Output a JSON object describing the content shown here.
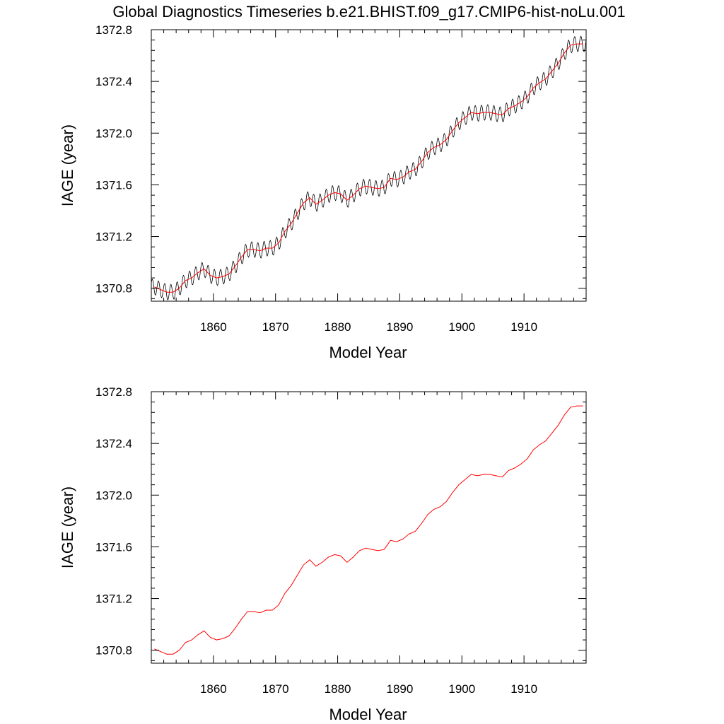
{
  "title": "Global Diagnostics Timeseries b.e21.BHIST.f09_g17.CMIP6-hist-noLu.001",
  "colors": {
    "monthly": "#000000",
    "annual": "#ff0000",
    "axes": "#000000"
  },
  "chart_data": [
    {
      "type": "line",
      "title": "Global Diagnostics Timeseries b.e21.BHIST.f09_g17.CMIP6-hist-noLu.001",
      "xlabel": "Model Year",
      "ylabel": "IAGE (year)",
      "xlim": [
        1850,
        1920
      ],
      "ylim": [
        1370.7,
        1372.8
      ],
      "x_ticks": [
        1860,
        1870,
        1880,
        1890,
        1900,
        1910
      ],
      "y_ticks": [
        1370.8,
        1371.2,
        1371.6,
        1372.0,
        1372.4,
        1372.8
      ],
      "x_tick_labels": [
        "1860",
        "1870",
        "1880",
        "1890",
        "1900",
        "1910"
      ],
      "y_tick_labels": [
        "1370.8",
        "1371.2",
        "1371.6",
        "1372.0",
        "1372.4",
        "1372.8"
      ],
      "grid": false,
      "series": [
        {
          "color": "#000000",
          "kind": "monthly",
          "seasonal_amplitude": 0.06,
          "x": [
            1850,
            1920
          ]
        },
        {
          "color": "#ff0000",
          "kind": "annual",
          "x": [
            1850.5,
            1851.5,
            1852.5,
            1853.5,
            1854.5,
            1855.5,
            1856.5,
            1857.5,
            1858.5,
            1859.5,
            1860.5,
            1861.5,
            1862.5,
            1863.5,
            1864.5,
            1865.5,
            1866.5,
            1867.5,
            1868.5,
            1869.5,
            1870.5,
            1871.5,
            1872.5,
            1873.5,
            1874.5,
            1875.5,
            1876.5,
            1877.5,
            1878.5,
            1879.5,
            1880.5,
            1881.5,
            1882.5,
            1883.5,
            1884.5,
            1885.5,
            1886.5,
            1887.5,
            1888.5,
            1889.5,
            1890.5,
            1891.5,
            1892.5,
            1893.5,
            1894.5,
            1895.5,
            1896.5,
            1897.5,
            1898.5,
            1899.5,
            1900.5,
            1901.5,
            1902.5,
            1903.5,
            1904.5,
            1905.5,
            1906.5,
            1907.5,
            1908.5,
            1909.5,
            1910.5,
            1911.5,
            1912.5,
            1913.5,
            1914.5,
            1915.5,
            1916.5,
            1917.5,
            1918.5,
            1919.5
          ],
          "values": [
            1370.81,
            1370.79,
            1370.77,
            1370.77,
            1370.8,
            1370.86,
            1370.88,
            1370.92,
            1370.95,
            1370.9,
            1370.88,
            1370.89,
            1370.91,
            1370.97,
            1371.04,
            1371.1,
            1371.1,
            1371.09,
            1371.11,
            1371.11,
            1371.15,
            1371.24,
            1371.3,
            1371.38,
            1371.46,
            1371.5,
            1371.45,
            1371.48,
            1371.52,
            1371.54,
            1371.53,
            1371.48,
            1371.52,
            1371.57,
            1371.59,
            1371.58,
            1371.57,
            1371.58,
            1371.65,
            1371.64,
            1371.66,
            1371.7,
            1371.72,
            1371.78,
            1371.85,
            1371.89,
            1371.91,
            1371.95,
            1372.02,
            1372.08,
            1372.12,
            1372.16,
            1372.15,
            1372.16,
            1372.16,
            1372.15,
            1372.14,
            1372.19,
            1372.21,
            1372.24,
            1372.28,
            1372.35,
            1372.39,
            1372.42,
            1372.48,
            1372.54,
            1372.62,
            1372.68,
            1372.69,
            1372.69
          ]
        }
      ]
    },
    {
      "type": "line",
      "xlabel": "Model Year",
      "ylabel": "IAGE (year)",
      "xlim": [
        1850,
        1920
      ],
      "ylim": [
        1370.7,
        1372.8
      ],
      "x_ticks": [
        1860,
        1870,
        1880,
        1890,
        1900,
        1910
      ],
      "y_ticks": [
        1370.8,
        1371.2,
        1371.6,
        1372.0,
        1372.4,
        1372.8
      ],
      "x_tick_labels": [
        "1860",
        "1870",
        "1880",
        "1890",
        "1900",
        "1910"
      ],
      "y_tick_labels": [
        "1370.8",
        "1371.2",
        "1371.6",
        "1372.0",
        "1372.4",
        "1372.8"
      ],
      "grid": false,
      "series": [
        {
          "color": "#ff0000",
          "kind": "annual",
          "x": [
            1850.5,
            1851.5,
            1852.5,
            1853.5,
            1854.5,
            1855.5,
            1856.5,
            1857.5,
            1858.5,
            1859.5,
            1860.5,
            1861.5,
            1862.5,
            1863.5,
            1864.5,
            1865.5,
            1866.5,
            1867.5,
            1868.5,
            1869.5,
            1870.5,
            1871.5,
            1872.5,
            1873.5,
            1874.5,
            1875.5,
            1876.5,
            1877.5,
            1878.5,
            1879.5,
            1880.5,
            1881.5,
            1882.5,
            1883.5,
            1884.5,
            1885.5,
            1886.5,
            1887.5,
            1888.5,
            1889.5,
            1890.5,
            1891.5,
            1892.5,
            1893.5,
            1894.5,
            1895.5,
            1896.5,
            1897.5,
            1898.5,
            1899.5,
            1900.5,
            1901.5,
            1902.5,
            1903.5,
            1904.5,
            1905.5,
            1906.5,
            1907.5,
            1908.5,
            1909.5,
            1910.5,
            1911.5,
            1912.5,
            1913.5,
            1914.5,
            1915.5,
            1916.5,
            1917.5,
            1918.5,
            1919.5
          ],
          "values": [
            1370.81,
            1370.79,
            1370.77,
            1370.77,
            1370.8,
            1370.86,
            1370.88,
            1370.92,
            1370.95,
            1370.9,
            1370.88,
            1370.89,
            1370.91,
            1370.97,
            1371.04,
            1371.1,
            1371.1,
            1371.09,
            1371.11,
            1371.11,
            1371.15,
            1371.24,
            1371.3,
            1371.38,
            1371.46,
            1371.5,
            1371.45,
            1371.48,
            1371.52,
            1371.54,
            1371.53,
            1371.48,
            1371.52,
            1371.57,
            1371.59,
            1371.58,
            1371.57,
            1371.58,
            1371.65,
            1371.64,
            1371.66,
            1371.7,
            1371.72,
            1371.78,
            1371.85,
            1371.89,
            1371.91,
            1371.95,
            1372.02,
            1372.08,
            1372.12,
            1372.16,
            1372.15,
            1372.16,
            1372.16,
            1372.15,
            1372.14,
            1372.19,
            1372.21,
            1372.24,
            1372.28,
            1372.35,
            1372.39,
            1372.42,
            1372.48,
            1372.54,
            1372.62,
            1372.68,
            1372.69,
            1372.69
          ]
        }
      ]
    }
  ]
}
